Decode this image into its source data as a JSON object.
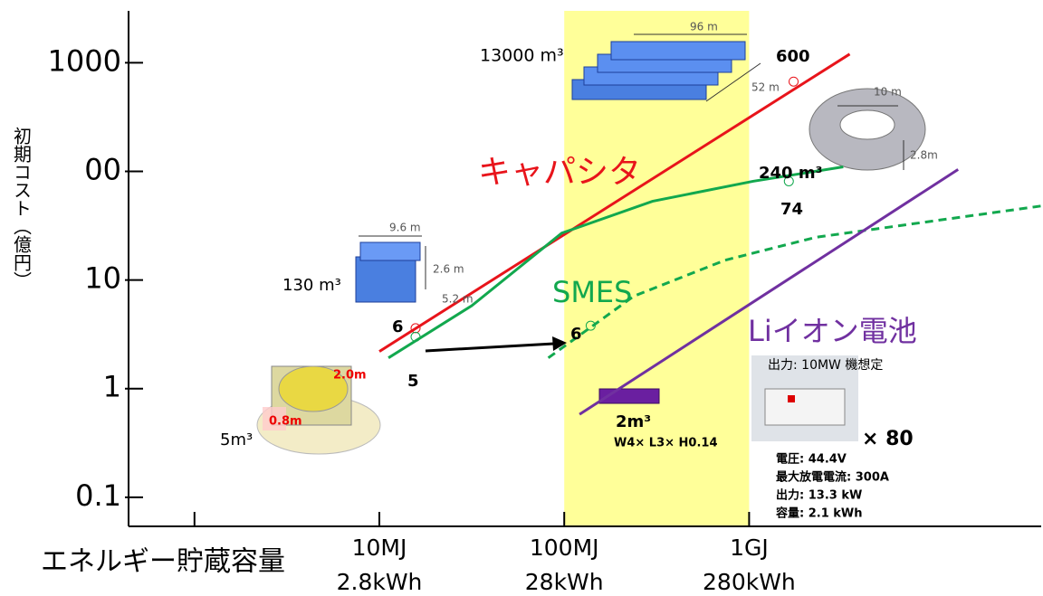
{
  "chart_data": {
    "type": "line",
    "y_title": "初期コスト（億円）",
    "x_title": "エネルギー貯蔵容量",
    "log_x": true,
    "log_y": true,
    "xlim": [
      0.44,
      38000
    ],
    "ylim": [
      0.054,
      3000
    ],
    "xticks": [
      {
        "value": 1,
        "label": null
      },
      {
        "value": 10,
        "label": "10MJ",
        "sublabel": "2.8kWh"
      },
      {
        "value": 100,
        "label": "100MJ",
        "sublabel": "28kWh"
      },
      {
        "value": 1000,
        "label": "1GJ",
        "sublabel": "280kWh"
      }
    ],
    "yticks": [
      0.1,
      1,
      10,
      {
        "value": 100,
        "label": "00"
      },
      1000
    ],
    "highlight": {
      "range": [
        100,
        1000
      ],
      "color": "#ffff99"
    },
    "series": [
      {
        "name": "キャパシタ",
        "color": "#e8141b",
        "x": [
          10,
          3500
        ],
        "values": [
          2.2,
          1200
        ]
      },
      {
        "name": "SMES",
        "color": "#12a84e",
        "x": [
          11.2,
          31.6,
          97,
          300,
          1050,
          3230
        ],
        "values": [
          1.92,
          5.8,
          27,
          53,
          81,
          110
        ]
      },
      {
        "color": "#12a84e",
        "dashed": true,
        "x": [
          82,
          238,
          740,
          2290,
          38000
        ],
        "values": [
          1.92,
          7.1,
          15.2,
          24.7,
          48
        ]
      },
      {
        "name": "Liイオン電池",
        "color": "#7030a0",
        "x": [
          121,
          13500
        ],
        "values": [
          0.58,
          104
        ]
      }
    ],
    "markers": [
      {
        "x": 1740,
        "y": 670,
        "label": "600",
        "color": "#e8141b"
      },
      {
        "x": 1640,
        "y": 81,
        "label": "74",
        "color": "#12a84e"
      },
      {
        "x": 15.7,
        "y": 3.6,
        "label": "6",
        "color": "#e8141b"
      },
      {
        "x": 15.7,
        "y": 3.0,
        "label": "5",
        "color": "#12a84e"
      },
      {
        "x": 139,
        "y": 3.8,
        "label": "6",
        "color": "#12a84e"
      }
    ],
    "annotations": [
      "13000 m³",
      "96 m",
      "52 m",
      "10 m",
      "2.8m",
      "240 m³",
      "9.6 m",
      "2.6 m",
      "5.2 m",
      "130 m³",
      "2.0m",
      "0.8m",
      "5m³",
      "2m³",
      "W4× L3× H0.14",
      "出力: 10MW 機想定",
      "× 80",
      "電圧: 44.4V",
      "最大放電電流: 300A",
      "出力: 13.3 kW",
      "容量: 2.1 kWh"
    ]
  }
}
